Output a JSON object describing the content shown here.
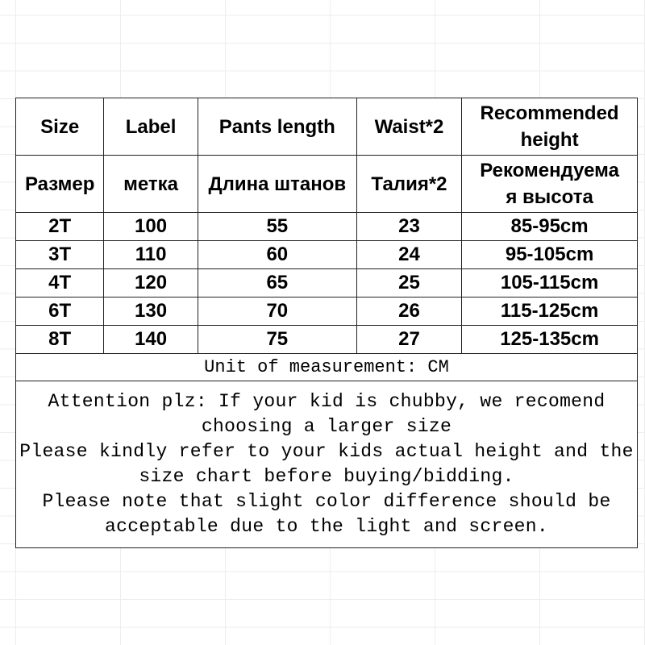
{
  "headers_en": [
    "Size",
    "Label",
    "Pants length",
    "Waist*2",
    "Recommended height"
  ],
  "headers_ru": [
    "Размер",
    "метка",
    "Длина штанов",
    "Талия*2",
    "Рекомендуема я высота"
  ],
  "rows": [
    [
      "2T",
      "100",
      "55",
      "23",
      "85-95cm"
    ],
    [
      "3T",
      "110",
      "60",
      "24",
      "95-105cm"
    ],
    [
      "4T",
      "120",
      "65",
      "25",
      "105-115cm"
    ],
    [
      "6T",
      "130",
      "70",
      "26",
      "115-125cm"
    ],
    [
      "8T",
      "140",
      "75",
      "27",
      "125-135cm"
    ]
  ],
  "unit_note": "Unit of measurement: CM",
  "notes": [
    "Attention plz: If your kid is chubby, we recomend",
    "choosing a larger size",
    "Please kindly refer to your kids actual height and the",
    "size chart before buying/bidding.",
    "Please note that slight color difference should be",
    "acceptable due to the light and screen."
  ]
}
